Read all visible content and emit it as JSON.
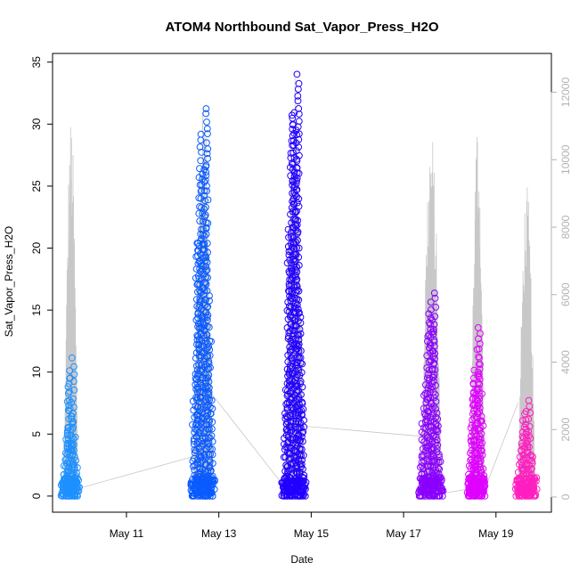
{
  "chart_data": {
    "type": "scatter",
    "title": "ATOM4 Northbound Sat_Vapor_Press_H2O",
    "xlabel": "Date",
    "ylabel": "Sat_Vapor_Press_H2O",
    "x_ticks": [
      "May 11",
      "May 13",
      "May 15",
      "May 17",
      "May 19"
    ],
    "x_tick_days": [
      11,
      13,
      15,
      17,
      19
    ],
    "xlim_days": [
      9.4,
      20.2
    ],
    "ylim": [
      -1.3,
      35.7
    ],
    "y_ticks": [
      0,
      5,
      10,
      15,
      20,
      25,
      30,
      35
    ],
    "y2lim": [
      -450,
      13150
    ],
    "y2_ticks": [
      0,
      2000,
      4000,
      6000,
      8000,
      10000,
      12000
    ],
    "grid": false,
    "legend": "none",
    "right_axis_color": "#b3b3b3",
    "clusters": [
      {
        "day_start": 9.62,
        "day_end": 9.95,
        "ymin": 0.0,
        "ymax": 11.2,
        "color": "#1e90ff"
      },
      {
        "day_start": 12.42,
        "day_end": 12.88,
        "ymin": 0.0,
        "ymax": 31.9,
        "color": "#0a5bff"
      },
      {
        "day_start": 14.4,
        "day_end": 14.85,
        "ymin": 0.0,
        "ymax": 34.7,
        "color": "#2200ff"
      },
      {
        "day_start": 17.35,
        "day_end": 17.82,
        "ymin": 0.0,
        "ymax": 16.5,
        "color": "#8a00ff"
      },
      {
        "day_start": 18.4,
        "day_end": 18.75,
        "ymin": 0.0,
        "ymax": 13.8,
        "color": "#e000ff"
      },
      {
        "day_start": 19.45,
        "day_end": 19.85,
        "ymin": 0.0,
        "ymax": 7.9,
        "color": "#ff1fc0"
      }
    ],
    "secondary_series": {
      "name": "",
      "color": "#c8c8c8",
      "segments": [
        {
          "day_start": 9.65,
          "day_end": 9.95,
          "peak": 11300
        },
        {
          "day_start": 12.45,
          "day_end": 12.88,
          "peak": 11800
        },
        {
          "day_start": 14.42,
          "day_end": 14.85,
          "peak": 12600
        },
        {
          "day_start": 17.38,
          "day_end": 17.82,
          "peak": 11000
        },
        {
          "day_start": 18.45,
          "day_end": 18.75,
          "peak": 11300
        },
        {
          "day_start": 19.48,
          "day_end": 19.85,
          "peak": 9300
        }
      ],
      "connections": [
        [
          9.95,
          250
        ],
        [
          12.45,
          1200
        ],
        [
          12.88,
          3000
        ],
        [
          14.42,
          300
        ],
        [
          14.85,
          2100
        ],
        [
          17.38,
          1800
        ],
        [
          17.82,
          100
        ],
        [
          18.45,
          250
        ],
        [
          18.75,
          200
        ],
        [
          19.48,
          2800
        ]
      ]
    }
  }
}
